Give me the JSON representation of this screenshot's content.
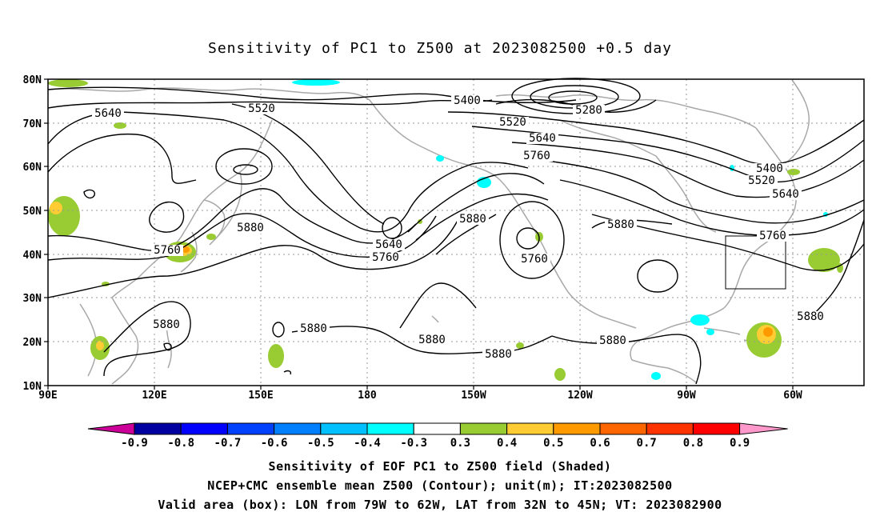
{
  "title": "Sensitivity of PC1 to Z500 at 2023082500 +0.5 day",
  "lat_labels": [
    "80N",
    "70N",
    "60N",
    "50N",
    "40N",
    "30N",
    "20N",
    "10N"
  ],
  "lon_labels": [
    "90E",
    "120E",
    "150E",
    "180",
    "150W",
    "120W",
    "90W",
    "60W"
  ],
  "contour_labels": [
    {
      "text": "5640",
      "name": "contour-label-5640"
    },
    {
      "text": "5520",
      "name": "contour-label-5520"
    },
    {
      "text": "5400",
      "name": "contour-label-5400"
    },
    {
      "text": "5280",
      "name": "contour-label-5280"
    },
    {
      "text": "5520",
      "name": "contour-label-5520"
    },
    {
      "text": "5640",
      "name": "contour-label-5640"
    },
    {
      "text": "5760",
      "name": "contour-label-5760"
    },
    {
      "text": "5880",
      "name": "contour-label-5880"
    },
    {
      "text": "5760",
      "name": "contour-label-5760"
    },
    {
      "text": "5640",
      "name": "contour-label-5640"
    },
    {
      "text": "5760",
      "name": "contour-label-5760"
    },
    {
      "text": "5880",
      "name": "contour-label-5880"
    },
    {
      "text": "5760",
      "name": "contour-label-5760"
    },
    {
      "text": "5880",
      "name": "contour-label-5880"
    },
    {
      "text": "5400",
      "name": "contour-label-5400"
    },
    {
      "text": "5520",
      "name": "contour-label-5520"
    },
    {
      "text": "5640",
      "name": "contour-label-5640"
    },
    {
      "text": "5760",
      "name": "contour-label-5760"
    },
    {
      "text": "5880",
      "name": "contour-label-5880"
    },
    {
      "text": "5880",
      "name": "contour-label-5880"
    },
    {
      "text": "5880",
      "name": "contour-label-5880"
    },
    {
      "text": "5880",
      "name": "contour-label-5880"
    },
    {
      "text": "5880",
      "name": "contour-label-5880"
    },
    {
      "text": "5880",
      "name": "contour-label-5880"
    }
  ],
  "colorbar": {
    "labels": [
      "-0.9",
      "-0.8",
      "-0.7",
      "-0.6",
      "-0.5",
      "-0.4",
      "-0.3",
      "0.3",
      "0.4",
      "0.5",
      "0.6",
      "0.7",
      "0.8",
      "0.9"
    ],
    "colors": [
      "#0000a0",
      "#0000ff",
      "#0040ff",
      "#0080ff",
      "#00c0ff",
      "#00ffff",
      "#ffffff",
      "#99cc33",
      "#ffcc33",
      "#ff9900",
      "#ff6600",
      "#ff3300",
      "#ff0000"
    ],
    "min_arrow_color": "#cc0099",
    "max_arrow_color": "#ff99cc"
  },
  "footer": {
    "line1": "Sensitivity of EOF PC1 to Z500 field (Shaded)",
    "line2": "NCEP+CMC ensemble mean Z500 (Contour); unit(m); IT:2023082500",
    "line3": "Valid area (box): LON from 79W to 62W, LAT from 32N to 45N; VT: 2023082900"
  },
  "valid_box": {
    "lon_min": -79,
    "lon_max": -62,
    "lat_min": 32,
    "lat_max": 45
  }
}
